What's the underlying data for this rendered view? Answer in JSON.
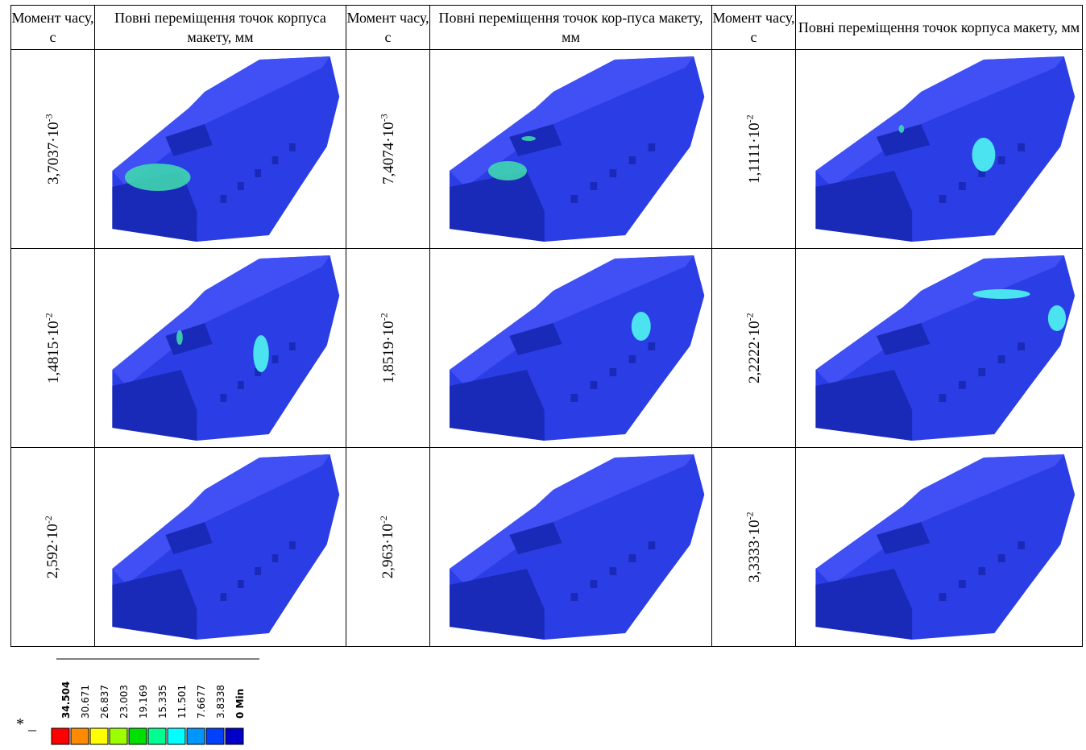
{
  "table": {
    "header": {
      "time_col": "Момент часу, с",
      "disp_col_1": "Повні переміщення точок корпуса макету, мм",
      "disp_col_2": "Повні переміщення точок кор-пуса макету, мм",
      "disp_col_3": "Повні переміщення точок корпуса макету, мм"
    },
    "rows": [
      [
        {
          "mantissa": "3,7037·10",
          "exp": "-3"
        },
        {
          "mantissa": "7,4074·10",
          "exp": "-3"
        },
        {
          "mantissa": "1,1111·10",
          "exp": "-2"
        }
      ],
      [
        {
          "mantissa": "1,4815·10",
          "exp": "-2"
        },
        {
          "mantissa": "1,8519·10",
          "exp": "-2"
        },
        {
          "mantissa": "2,2222·10",
          "exp": "-2"
        }
      ],
      [
        {
          "mantissa": "2,592·10",
          "exp": "-2"
        },
        {
          "mantissa": "2,963·10",
          "exp": "-2"
        },
        {
          "mantissa": "3,3333·10",
          "exp": "-2"
        }
      ]
    ]
  },
  "legend": {
    "max_label": "34.504",
    "values": [
      "34.504",
      "30.671",
      "26.837",
      "23.003",
      "19.169",
      "15.335",
      "11.501",
      "7.6677",
      "3.8338",
      "0 Min"
    ],
    "colors": [
      "#ff0000",
      "#ff8a00",
      "#ffff00",
      "#9cff00",
      "#00e000",
      "#00ff90",
      "#00ffff",
      "#0096ff",
      "#0040ff",
      "#0000c8"
    ],
    "star": "* _"
  },
  "colors": {
    "body": "#2b3ee6",
    "body_dark": "#1a2ab8",
    "body_light": "#4050f5",
    "hot_green": "#3fd6b0",
    "hot_cyan": "#4ff5f0"
  }
}
